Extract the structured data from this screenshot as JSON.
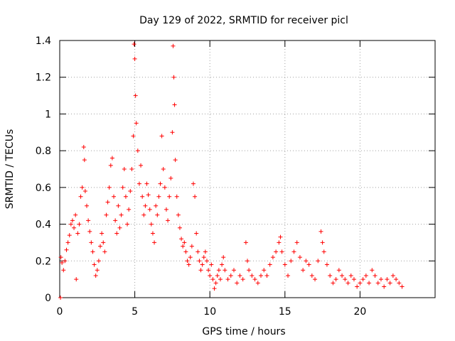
{
  "chart_data": {
    "type": "scatter",
    "title": "Day 129 of 2022, SRMTID for receiver picl",
    "xlabel": "GPS time / hours",
    "ylabel": "SRMTID / TECUs",
    "xlim": [
      0,
      25
    ],
    "ylim": [
      0,
      1.4
    ],
    "xticks": [
      0,
      5,
      10,
      15,
      20
    ],
    "xtick_labels": [
      "0",
      "5",
      "10",
      "15",
      "20"
    ],
    "yticks": [
      0,
      0.2,
      0.4,
      0.6,
      0.8,
      1,
      1.2,
      1.4
    ],
    "ytick_labels": [
      "0",
      "0.2",
      "0.4",
      "0.6",
      "0.8",
      "1",
      "1.2",
      "1.4"
    ],
    "grid": true,
    "marker": "+",
    "series": [
      {
        "name": "SRMTID",
        "color": "#ff0000",
        "points": [
          [
            0.05,
            0.0
          ],
          [
            0.08,
            0.22
          ],
          [
            0.15,
            0.19
          ],
          [
            0.25,
            0.15
          ],
          [
            0.35,
            0.2
          ],
          [
            0.45,
            0.26
          ],
          [
            0.55,
            0.3
          ],
          [
            0.65,
            0.34
          ],
          [
            0.75,
            0.4
          ],
          [
            0.85,
            0.42
          ],
          [
            0.95,
            0.38
          ],
          [
            1.05,
            0.45
          ],
          [
            1.1,
            0.1
          ],
          [
            1.2,
            0.35
          ],
          [
            1.3,
            0.4
          ],
          [
            1.4,
            0.55
          ],
          [
            1.5,
            0.6
          ],
          [
            1.6,
            0.82
          ],
          [
            1.65,
            0.75
          ],
          [
            1.7,
            0.58
          ],
          [
            1.8,
            0.5
          ],
          [
            1.9,
            0.42
          ],
          [
            2.0,
            0.36
          ],
          [
            2.1,
            0.3
          ],
          [
            2.2,
            0.25
          ],
          [
            2.3,
            0.18
          ],
          [
            2.4,
            0.12
          ],
          [
            2.5,
            0.15
          ],
          [
            2.6,
            0.2
          ],
          [
            2.7,
            0.28
          ],
          [
            2.8,
            0.35
          ],
          [
            2.9,
            0.3
          ],
          [
            3.0,
            0.25
          ],
          [
            3.1,
            0.45
          ],
          [
            3.2,
            0.52
          ],
          [
            3.3,
            0.6
          ],
          [
            3.4,
            0.72
          ],
          [
            3.5,
            0.76
          ],
          [
            3.6,
            0.55
          ],
          [
            3.7,
            0.42
          ],
          [
            3.8,
            0.35
          ],
          [
            3.9,
            0.5
          ],
          [
            4.0,
            0.38
          ],
          [
            4.1,
            0.45
          ],
          [
            4.2,
            0.6
          ],
          [
            4.3,
            0.7
          ],
          [
            4.4,
            0.55
          ],
          [
            4.5,
            0.4
          ],
          [
            4.6,
            0.48
          ],
          [
            4.7,
            0.58
          ],
          [
            4.8,
            0.7
          ],
          [
            4.9,
            0.88
          ],
          [
            4.95,
            1.38
          ],
          [
            5.0,
            1.3
          ],
          [
            5.05,
            1.1
          ],
          [
            5.1,
            0.95
          ],
          [
            5.2,
            0.8
          ],
          [
            5.3,
            0.62
          ],
          [
            5.4,
            0.72
          ],
          [
            5.5,
            0.55
          ],
          [
            5.6,
            0.45
          ],
          [
            5.7,
            0.5
          ],
          [
            5.8,
            0.62
          ],
          [
            5.9,
            0.56
          ],
          [
            6.0,
            0.48
          ],
          [
            6.1,
            0.4
          ],
          [
            6.2,
            0.35
          ],
          [
            6.3,
            0.3
          ],
          [
            6.4,
            0.5
          ],
          [
            6.5,
            0.45
          ],
          [
            6.6,
            0.55
          ],
          [
            6.7,
            0.62
          ],
          [
            6.8,
            0.88
          ],
          [
            6.9,
            0.7
          ],
          [
            7.0,
            0.6
          ],
          [
            7.1,
            0.48
          ],
          [
            7.2,
            0.42
          ],
          [
            7.3,
            0.55
          ],
          [
            7.4,
            0.65
          ],
          [
            7.5,
            0.9
          ],
          [
            7.55,
            1.37
          ],
          [
            7.6,
            1.2
          ],
          [
            7.65,
            1.05
          ],
          [
            7.7,
            0.75
          ],
          [
            7.8,
            0.55
          ],
          [
            7.9,
            0.45
          ],
          [
            8.0,
            0.38
          ],
          [
            8.1,
            0.32
          ],
          [
            8.2,
            0.28
          ],
          [
            8.3,
            0.3
          ],
          [
            8.4,
            0.25
          ],
          [
            8.5,
            0.2
          ],
          [
            8.6,
            0.18
          ],
          [
            8.7,
            0.22
          ],
          [
            8.8,
            0.28
          ],
          [
            8.9,
            0.62
          ],
          [
            9.0,
            0.55
          ],
          [
            9.1,
            0.35
          ],
          [
            9.2,
            0.25
          ],
          [
            9.3,
            0.2
          ],
          [
            9.4,
            0.15
          ],
          [
            9.5,
            0.18
          ],
          [
            9.6,
            0.22
          ],
          [
            9.7,
            0.25
          ],
          [
            9.8,
            0.2
          ],
          [
            9.9,
            0.15
          ],
          [
            10.0,
            0.12
          ],
          [
            10.1,
            0.18
          ],
          [
            10.2,
            0.1
          ],
          [
            10.3,
            0.05
          ],
          [
            10.4,
            0.08
          ],
          [
            10.5,
            0.12
          ],
          [
            10.6,
            0.15
          ],
          [
            10.7,
            0.1
          ],
          [
            10.8,
            0.18
          ],
          [
            10.9,
            0.22
          ],
          [
            11.0,
            0.15
          ],
          [
            11.2,
            0.1
          ],
          [
            11.4,
            0.12
          ],
          [
            11.6,
            0.15
          ],
          [
            11.8,
            0.08
          ],
          [
            12.0,
            0.12
          ],
          [
            12.2,
            0.1
          ],
          [
            12.4,
            0.3
          ],
          [
            12.5,
            0.2
          ],
          [
            12.6,
            0.15
          ],
          [
            12.8,
            0.12
          ],
          [
            13.0,
            0.1
          ],
          [
            13.2,
            0.08
          ],
          [
            13.4,
            0.12
          ],
          [
            13.6,
            0.15
          ],
          [
            13.8,
            0.12
          ],
          [
            14.0,
            0.18
          ],
          [
            14.2,
            0.22
          ],
          [
            14.4,
            0.25
          ],
          [
            14.6,
            0.3
          ],
          [
            14.7,
            0.33
          ],
          [
            14.8,
            0.25
          ],
          [
            15.0,
            0.18
          ],
          [
            15.2,
            0.12
          ],
          [
            15.4,
            0.2
          ],
          [
            15.6,
            0.25
          ],
          [
            15.8,
            0.3
          ],
          [
            16.0,
            0.22
          ],
          [
            16.2,
            0.15
          ],
          [
            16.4,
            0.2
          ],
          [
            16.6,
            0.18
          ],
          [
            16.8,
            0.12
          ],
          [
            17.0,
            0.1
          ],
          [
            17.2,
            0.2
          ],
          [
            17.4,
            0.36
          ],
          [
            17.5,
            0.3
          ],
          [
            17.6,
            0.25
          ],
          [
            17.8,
            0.18
          ],
          [
            18.0,
            0.12
          ],
          [
            18.2,
            0.08
          ],
          [
            18.4,
            0.1
          ],
          [
            18.6,
            0.15
          ],
          [
            18.8,
            0.12
          ],
          [
            19.0,
            0.1
          ],
          [
            19.2,
            0.08
          ],
          [
            19.4,
            0.12
          ],
          [
            19.6,
            0.1
          ],
          [
            19.8,
            0.06
          ],
          [
            20.0,
            0.08
          ],
          [
            20.2,
            0.1
          ],
          [
            20.4,
            0.12
          ],
          [
            20.6,
            0.08
          ],
          [
            20.8,
            0.15
          ],
          [
            21.0,
            0.12
          ],
          [
            21.2,
            0.08
          ],
          [
            21.4,
            0.1
          ],
          [
            21.6,
            0.06
          ],
          [
            21.8,
            0.1
          ],
          [
            22.0,
            0.08
          ],
          [
            22.2,
            0.12
          ],
          [
            22.4,
            0.1
          ],
          [
            22.6,
            0.08
          ],
          [
            22.8,
            0.06
          ]
        ]
      }
    ]
  }
}
